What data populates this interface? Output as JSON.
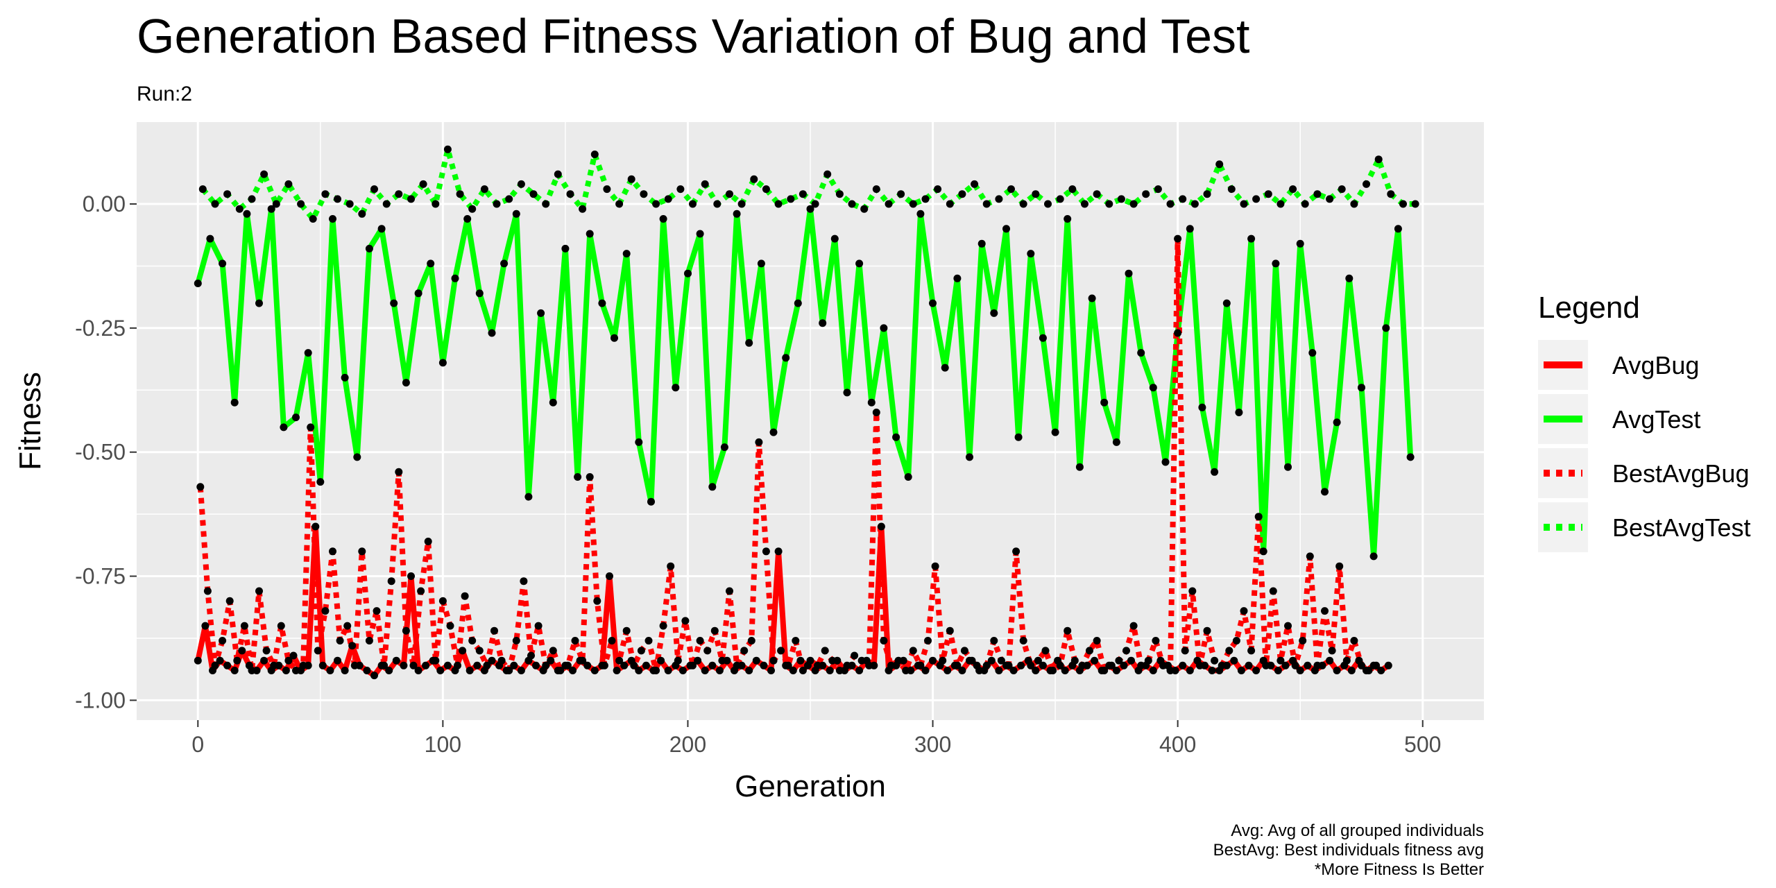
{
  "chart_data": {
    "type": "line",
    "title": "Generation Based Fitness Variation of Bug and Test",
    "subtitle": "Run:2",
    "xlabel": "Generation",
    "ylabel": "Fitness",
    "xlim": [
      -25,
      525
    ],
    "ylim": [
      -1.04,
      0.165
    ],
    "x_ticks": [
      0,
      100,
      200,
      300,
      400,
      500
    ],
    "x_tick_labels": [
      "0",
      "100",
      "200",
      "300",
      "400",
      "500"
    ],
    "y_ticks": [
      -1.0,
      -0.75,
      -0.5,
      -0.25,
      0.0
    ],
    "y_tick_labels": [
      "-1.00",
      "-0.75",
      "-0.50",
      "-0.25",
      "0.00"
    ],
    "grid": true,
    "legend_position": "right",
    "legend": {
      "title": "Legend",
      "entries": [
        {
          "name": "AvgBug",
          "color": "#FF0000",
          "style": "solid"
        },
        {
          "name": "AvgTest",
          "color": "#00FF00",
          "style": "solid"
        },
        {
          "name": "BestAvgBug",
          "color": "#FF0000",
          "style": "dotted"
        },
        {
          "name": "BestAvgTest",
          "color": "#00FF00",
          "style": "dotted"
        }
      ]
    },
    "caption": [
      "Avg: Avg of all grouped individuals",
      "BestAvg: Best individuals fitness avg",
      "*More Fitness Is Better"
    ],
    "colors": {
      "panel": "#EBEBEB",
      "grid": "#FFFFFF",
      "bug": "#FF0000",
      "test": "#00FF00",
      "points": "#000000"
    },
    "series": [
      {
        "name": "AvgTest",
        "x_start": 0,
        "x_step": 5,
        "values": [
          -0.16,
          -0.07,
          -0.12,
          -0.4,
          -0.02,
          -0.2,
          -0.01,
          -0.45,
          -0.43,
          -0.3,
          -0.56,
          -0.03,
          -0.35,
          -0.51,
          -0.09,
          -0.05,
          -0.2,
          -0.36,
          -0.18,
          -0.12,
          -0.32,
          -0.15,
          -0.03,
          -0.18,
          -0.26,
          -0.12,
          -0.02,
          -0.59,
          -0.22,
          -0.4,
          -0.09,
          -0.55,
          -0.06,
          -0.2,
          -0.27,
          -0.1,
          -0.48,
          -0.6,
          -0.03,
          -0.37,
          -0.14,
          -0.06,
          -0.57,
          -0.49,
          -0.02,
          -0.28,
          -0.12,
          -0.46,
          -0.31,
          -0.2,
          -0.01,
          -0.24,
          -0.07,
          -0.38,
          -0.12,
          -0.4,
          -0.25,
          -0.47,
          -0.55,
          -0.02,
          -0.2,
          -0.33,
          -0.15,
          -0.51,
          -0.08,
          -0.22,
          -0.05,
          -0.47,
          -0.1,
          -0.27,
          -0.46,
          -0.03,
          -0.53,
          -0.19,
          -0.4,
          -0.48,
          -0.14,
          -0.3,
          -0.37,
          -0.52,
          -0.26,
          -0.05,
          -0.41,
          -0.54,
          -0.2,
          -0.42,
          -0.07,
          -0.7,
          -0.12,
          -0.53,
          -0.08,
          -0.3,
          -0.58,
          -0.44,
          -0.15,
          -0.37,
          -0.71,
          -0.25,
          -0.05,
          -0.51
        ]
      },
      {
        "name": "BestAvgTest",
        "x_start": 2,
        "x_step": 5,
        "values": [
          0.03,
          0.0,
          0.02,
          -0.01,
          0.01,
          0.06,
          0.0,
          0.04,
          0.0,
          -0.03,
          0.02,
          0.01,
          0.0,
          -0.02,
          0.03,
          0.0,
          0.02,
          0.01,
          0.04,
          0.0,
          0.11,
          0.02,
          -0.01,
          0.03,
          0.0,
          0.01,
          0.04,
          0.02,
          0.0,
          0.06,
          0.02,
          -0.01,
          0.1,
          0.03,
          0.0,
          0.05,
          0.02,
          0.0,
          0.01,
          0.03,
          0.0,
          0.04,
          0.0,
          0.02,
          0.0,
          0.05,
          0.03,
          0.0,
          0.01,
          0.02,
          0.0,
          0.06,
          0.02,
          0.0,
          -0.01,
          0.03,
          0.0,
          0.02,
          0.0,
          0.01,
          0.03,
          0.0,
          0.02,
          0.04,
          0.0,
          0.01,
          0.03,
          0.0,
          0.02,
          0.0,
          0.01,
          0.03,
          0.0,
          0.02,
          0.0,
          0.01,
          0.0,
          0.02,
          0.03,
          0.0,
          0.01,
          0.0,
          0.02,
          0.08,
          0.03,
          0.0,
          0.01,
          0.02,
          0.0,
          0.03,
          0.0,
          0.02,
          0.01,
          0.03,
          0.0,
          0.04,
          0.09,
          0.02,
          0.0,
          0.0
        ]
      },
      {
        "name": "AvgBug",
        "x_start": 0,
        "x_step": 3,
        "values": [
          -0.92,
          -0.85,
          -0.94,
          -0.92,
          -0.93,
          -0.94,
          -0.9,
          -0.93,
          -0.94,
          -0.92,
          -0.94,
          -0.93,
          -0.94,
          -0.91,
          -0.94,
          -0.93,
          -0.65,
          -0.93,
          -0.94,
          -0.92,
          -0.94,
          -0.89,
          -0.93,
          -0.94,
          -0.95,
          -0.93,
          -0.94,
          -0.92,
          -0.93,
          -0.75,
          -0.94,
          -0.93,
          -0.92,
          -0.94,
          -0.93,
          -0.94,
          -0.9,
          -0.94,
          -0.93,
          -0.94,
          -0.92,
          -0.93,
          -0.94,
          -0.93,
          -0.94,
          -0.92,
          -0.93,
          -0.94,
          -0.92,
          -0.94,
          -0.93,
          -0.94,
          -0.92,
          -0.93,
          -0.94,
          -0.93,
          -0.75,
          -0.94,
          -0.93,
          -0.92,
          -0.94,
          -0.93,
          -0.94,
          -0.92,
          -0.94,
          -0.93,
          -0.94,
          -0.93,
          -0.92,
          -0.94,
          -0.93,
          -0.94,
          -0.92,
          -0.94,
          -0.93,
          -0.94,
          -0.92,
          -0.93,
          -0.94,
          -0.7,
          -0.93,
          -0.94,
          -0.92,
          -0.93,
          -0.94,
          -0.93,
          -0.94,
          -0.92,
          -0.94,
          -0.93,
          -0.94,
          -0.92,
          -0.93,
          -0.65,
          -0.94,
          -0.93,
          -0.92,
          -0.94,
          -0.93,
          -0.94,
          -0.92,
          -0.93,
          -0.94,
          -0.93,
          -0.94,
          -0.92,
          -0.93,
          -0.94,
          -0.92,
          -0.94,
          -0.93,
          -0.94,
          -0.93,
          -0.92,
          -0.94,
          -0.93,
          -0.94,
          -0.92,
          -0.94,
          -0.93,
          -0.94,
          -0.93,
          -0.92,
          -0.94,
          -0.93,
          -0.94,
          -0.93,
          -0.92,
          -0.94,
          -0.93,
          -0.94,
          -0.92,
          -0.93,
          -0.94,
          -0.93,
          -0.94,
          -0.92,
          -0.93,
          -0.94,
          -0.94,
          -0.93,
          -0.92,
          -0.94,
          -0.93,
          -0.94,
          -0.92,
          -0.93,
          -0.94,
          -0.93,
          -0.92,
          -0.94,
          -0.93,
          -0.94,
          -0.93,
          -0.92,
          -0.94,
          -0.93,
          -0.94,
          -0.92,
          -0.94,
          -0.93,
          -0.94,
          -0.93
        ]
      },
      {
        "name": "BestAvgBug",
        "x_start": 1,
        "x_step": 3,
        "values": [
          -0.57,
          -0.78,
          -0.93,
          -0.88,
          -0.8,
          -0.92,
          -0.85,
          -0.94,
          -0.78,
          -0.9,
          -0.93,
          -0.85,
          -0.92,
          -0.94,
          -0.93,
          -0.45,
          -0.9,
          -0.82,
          -0.7,
          -0.88,
          -0.85,
          -0.93,
          -0.7,
          -0.88,
          -0.82,
          -0.93,
          -0.76,
          -0.54,
          -0.86,
          -0.93,
          -0.78,
          -0.68,
          -0.92,
          -0.8,
          -0.85,
          -0.93,
          -0.79,
          -0.88,
          -0.9,
          -0.93,
          -0.86,
          -0.92,
          -0.94,
          -0.88,
          -0.76,
          -0.91,
          -0.85,
          -0.93,
          -0.9,
          -0.94,
          -0.93,
          -0.88,
          -0.92,
          -0.55,
          -0.8,
          -0.93,
          -0.88,
          -0.92,
          -0.86,
          -0.93,
          -0.9,
          -0.88,
          -0.94,
          -0.85,
          -0.73,
          -0.92,
          -0.84,
          -0.93,
          -0.88,
          -0.9,
          -0.86,
          -0.92,
          -0.78,
          -0.93,
          -0.9,
          -0.88,
          -0.48,
          -0.7,
          -0.92,
          -0.9,
          -0.93,
          -0.88,
          -0.94,
          -0.92,
          -0.93,
          -0.9,
          -0.92,
          -0.94,
          -0.93,
          -0.91,
          -0.92,
          -0.93,
          -0.42,
          -0.88,
          -0.93,
          -0.92,
          -0.94,
          -0.9,
          -0.93,
          -0.88,
          -0.73,
          -0.92,
          -0.86,
          -0.93,
          -0.9,
          -0.92,
          -0.94,
          -0.93,
          -0.88,
          -0.92,
          -0.93,
          -0.7,
          -0.88,
          -0.93,
          -0.92,
          -0.9,
          -0.94,
          -0.93,
          -0.86,
          -0.92,
          -0.93,
          -0.9,
          -0.88,
          -0.94,
          -0.93,
          -0.92,
          -0.9,
          -0.85,
          -0.93,
          -0.92,
          -0.88,
          -0.93,
          -0.94,
          -0.07,
          -0.9,
          -0.78,
          -0.93,
          -0.86,
          -0.92,
          -0.93,
          -0.9,
          -0.88,
          -0.82,
          -0.9,
          -0.63,
          -0.93,
          -0.78,
          -0.92,
          -0.85,
          -0.93,
          -0.88,
          -0.71,
          -0.93,
          -0.82,
          -0.9,
          -0.73,
          -0.92,
          -0.88,
          -0.93,
          -0.94,
          -0.93
        ]
      }
    ]
  }
}
